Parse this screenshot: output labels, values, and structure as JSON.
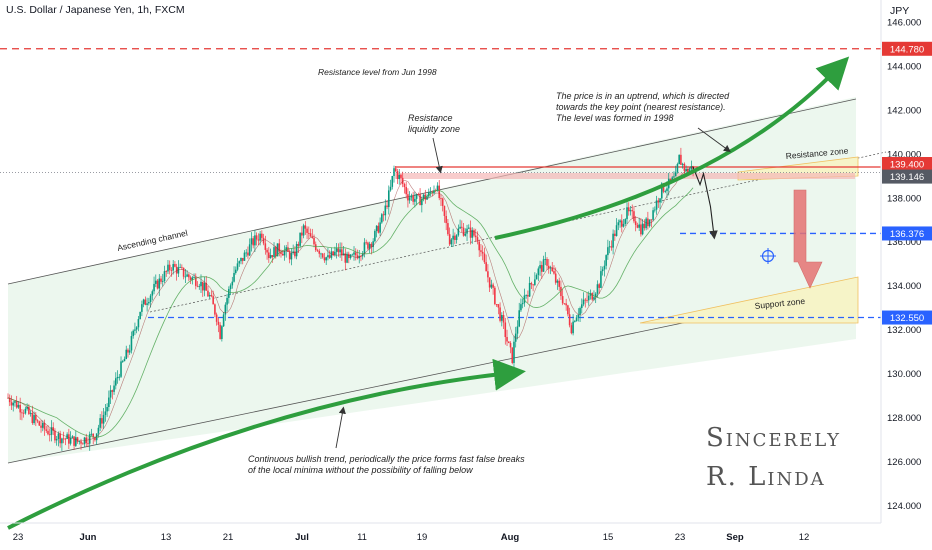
{
  "header": {
    "symbol_title": "U.S. Dollar / Japanese Yen, 1h, FXCM",
    "currency": "JPY"
  },
  "colors": {
    "candle_up": "#089981",
    "candle_down": "#f23645",
    "resistance_line": "#e53935",
    "key_level_line": "#2962ff",
    "arrow_green": "#2e9e3e",
    "arrow_red": "#e57373",
    "channel_fill": "#eaf6ec",
    "zone_fill": "#f6f4c8"
  },
  "chart_data": {
    "type": "candlestick",
    "x_ticks": [
      "23",
      "Jun",
      "13",
      "21",
      "Jul",
      "11",
      "19",
      "Aug",
      "15",
      "23",
      "Sep",
      "12"
    ],
    "y_ticks": [
      "124.000",
      "126.000",
      "128.000",
      "130.000",
      "132.000",
      "134.000",
      "136.000",
      "138.000",
      "140.000",
      "142.000",
      "144.000",
      "146.000"
    ],
    "ylim": [
      123.2,
      147.0
    ],
    "price_labels": [
      "144.780",
      "139.400",
      "139.146",
      "136.376",
      "132.550"
    ],
    "horizontal_levels": {
      "resistance_1998": 144.78,
      "resistance_zone_level": 139.4,
      "last_price": 139.146,
      "target": 136.376,
      "support_level": 132.55
    },
    "price_path": [
      [
        0,
        128.9
      ],
      [
        5,
        128.3
      ],
      [
        10,
        127.5
      ],
      [
        15,
        127.1
      ],
      [
        20,
        126.9
      ],
      [
        25,
        127.2
      ],
      [
        28,
        128.3
      ],
      [
        32,
        130.1
      ],
      [
        35,
        131.2
      ],
      [
        38,
        132.9
      ],
      [
        40,
        133.4
      ],
      [
        43,
        134.1
      ],
      [
        47,
        134.9
      ],
      [
        52,
        134.4
      ],
      [
        55,
        134.2
      ],
      [
        58,
        133.5
      ],
      [
        60,
        132.6
      ],
      [
        61,
        131.8
      ],
      [
        62,
        132.9
      ],
      [
        65,
        134.6
      ],
      [
        70,
        135.9
      ],
      [
        73,
        136.4
      ],
      [
        75,
        135.4
      ],
      [
        78,
        135.7
      ],
      [
        82,
        135.3
      ],
      [
        85,
        136.6
      ],
      [
        88,
        135.9
      ],
      [
        92,
        135.2
      ],
      [
        95,
        135.6
      ],
      [
        98,
        135.1
      ],
      [
        100,
        135.4
      ],
      [
        105,
        136.1
      ],
      [
        108,
        137.2
      ],
      [
        110,
        138.4
      ],
      [
        111,
        139.3
      ],
      [
        113,
        138.8
      ],
      [
        115,
        138.1
      ],
      [
        118,
        137.9
      ],
      [
        121,
        138.1
      ],
      [
        123,
        138.6
      ],
      [
        125,
        137.4
      ],
      [
        127,
        136.1
      ],
      [
        130,
        136.6
      ],
      [
        133,
        136.4
      ],
      [
        135,
        136.2
      ],
      [
        137,
        134.9
      ],
      [
        140,
        133.4
      ],
      [
        142,
        132.4
      ],
      [
        144,
        131.2
      ],
      [
        145,
        130.7
      ],
      [
        146,
        131.9
      ],
      [
        148,
        133.4
      ],
      [
        150,
        133.9
      ],
      [
        152,
        134.6
      ],
      [
        155,
        135.1
      ],
      [
        157,
        134.4
      ],
      [
        160,
        133.2
      ],
      [
        162,
        132.1
      ],
      [
        163,
        132.6
      ],
      [
        165,
        133.1
      ],
      [
        168,
        133.6
      ],
      [
        170,
        134.1
      ],
      [
        172,
        135.4
      ],
      [
        175,
        136.6
      ],
      [
        178,
        137.3
      ],
      [
        180,
        137.1
      ],
      [
        182,
        136.6
      ],
      [
        184,
        136.9
      ],
      [
        186,
        137.6
      ],
      [
        188,
        138.4
      ],
      [
        190,
        138.6
      ],
      [
        192,
        138.9
      ],
      [
        193,
        139.8
      ],
      [
        195,
        139.2
      ],
      [
        197,
        139.4
      ]
    ],
    "projected_path": [
      [
        197,
        139.4
      ],
      [
        199,
        138.6
      ],
      [
        200,
        139.1
      ],
      [
        202,
        137.6
      ],
      [
        203,
        136.3
      ]
    ],
    "x_domain": [
      0,
      245
    ],
    "annotations": [
      "Resistance level from Jun 1998",
      "The price is in an uptrend, which is directed",
      "towards the key point (nearest resistance).",
      "The level was formed in 1998",
      "Resistance",
      "liquidity zone",
      "Ascending channel",
      "Resistance zone",
      "Support zone",
      "Continuous bullish trend, periodically the price forms fast false breaks",
      "of the local minima without the possibility of falling below"
    ],
    "signature": [
      "Sincerely",
      "R. Linda"
    ],
    "grid": false
  }
}
